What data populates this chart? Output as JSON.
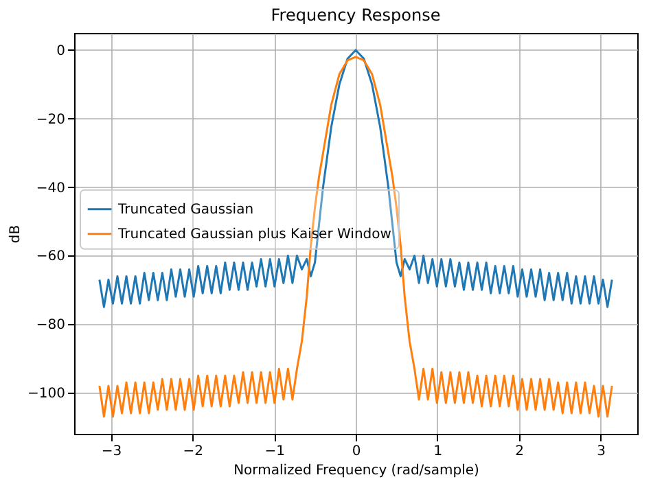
{
  "chart_data": {
    "type": "line",
    "title": "Frequency Response",
    "xlabel": "Normalized Frequency (rad/sample)",
    "ylabel": "dB",
    "x": [
      -3.14,
      -3.085,
      -3.03,
      -2.975,
      -2.92,
      -2.865,
      -2.81,
      -2.755,
      -2.7,
      -2.645,
      -2.59,
      -2.535,
      -2.48,
      -2.425,
      -2.37,
      -2.315,
      -2.26,
      -2.205,
      -2.15,
      -2.095,
      -2.04,
      -1.985,
      -1.93,
      -1.875,
      -1.82,
      -1.765,
      -1.71,
      -1.655,
      -1.6,
      -1.545,
      -1.49,
      -1.435,
      -1.38,
      -1.325,
      -1.27,
      -1.215,
      -1.16,
      -1.105,
      -1.05,
      -0.995,
      -0.94,
      -0.885,
      -0.83,
      -0.775,
      -0.72,
      -0.66,
      -0.6,
      -0.55,
      -0.5,
      -0.45,
      -0.4,
      -0.3,
      -0.2,
      -0.1,
      0,
      0.1,
      0.2,
      0.3,
      0.4,
      0.45,
      0.5,
      0.55,
      0.6,
      0.66,
      0.72,
      0.775,
      0.83,
      0.885,
      0.94,
      0.995,
      1.05,
      1.105,
      1.16,
      1.215,
      1.27,
      1.325,
      1.38,
      1.435,
      1.49,
      1.545,
      1.6,
      1.655,
      1.71,
      1.765,
      1.82,
      1.875,
      1.93,
      1.985,
      2.04,
      2.095,
      2.15,
      2.205,
      2.26,
      2.315,
      2.37,
      2.425,
      2.48,
      2.535,
      2.59,
      2.645,
      2.7,
      2.755,
      2.81,
      2.865,
      2.92,
      2.975,
      3.03,
      3.085,
      3.14
    ],
    "series": [
      {
        "name": "Truncated Gaussian",
        "color": "#1f77b4",
        "values": [
          -67,
          -75,
          -67,
          -74,
          -66,
          -74,
          -66,
          -74,
          -66,
          -74,
          -65,
          -73,
          -65,
          -73,
          -65,
          -73,
          -64,
          -72,
          -64,
          -72,
          -64,
          -72,
          -63,
          -71,
          -63,
          -71,
          -63,
          -71,
          -62,
          -70,
          -62,
          -70,
          -62,
          -70,
          -62,
          -69,
          -61,
          -69,
          -61,
          -69,
          -61,
          -68,
          -60,
          -68,
          -60,
          -64,
          -61,
          -66,
          -62,
          -51,
          -40,
          -22.5,
          -10,
          -2.5,
          0,
          -2.5,
          -10,
          -22.5,
          -40,
          -51,
          -62,
          -66,
          -61,
          -64,
          -60,
          -68,
          -60,
          -68,
          -61,
          -69,
          -61,
          -69,
          -61,
          -69,
          -62,
          -70,
          -62,
          -70,
          -62,
          -70,
          -62,
          -71,
          -63,
          -71,
          -63,
          -71,
          -63,
          -72,
          -64,
          -72,
          -64,
          -72,
          -64,
          -73,
          -65,
          -73,
          -65,
          -73,
          -65,
          -74,
          -66,
          -74,
          -66,
          -74,
          -66,
          -74,
          -67,
          -75,
          -67
        ]
      },
      {
        "name": "Truncated Gaussian plus Kaiser Window",
        "color": "#ff7f0e",
        "values": [
          -98,
          -107,
          -98,
          -107,
          -98,
          -106,
          -97,
          -106,
          -97,
          -106,
          -97,
          -106,
          -97,
          -105,
          -96,
          -105,
          -96,
          -105,
          -96,
          -105,
          -96,
          -105,
          -95,
          -104,
          -95,
          -104,
          -95,
          -104,
          -95,
          -104,
          -95,
          -103,
          -94,
          -103,
          -94,
          -103,
          -94,
          -103,
          -94,
          -103,
          -93,
          -102,
          -93,
          -102,
          -93,
          -85,
          -72,
          -57,
          -46,
          -37,
          -30,
          -16,
          -7,
          -3,
          -2,
          -3,
          -7,
          -16,
          -30,
          -37,
          -46,
          -57,
          -72,
          -85,
          -93,
          -102,
          -93,
          -102,
          -93,
          -103,
          -94,
          -103,
          -94,
          -103,
          -94,
          -103,
          -94,
          -103,
          -95,
          -104,
          -95,
          -104,
          -95,
          -104,
          -95,
          -104,
          -95,
          -105,
          -96,
          -105,
          -96,
          -105,
          -96,
          -105,
          -96,
          -105,
          -97,
          -106,
          -97,
          -106,
          -97,
          -106,
          -97,
          -106,
          -98,
          -107,
          -98,
          -107,
          -98
        ]
      }
    ],
    "xlim": [
      -3.45,
      3.45
    ],
    "ylim": [
      -112,
      5
    ],
    "xticks": [
      {
        "value": -3,
        "label": "−3"
      },
      {
        "value": -2,
        "label": "−2"
      },
      {
        "value": -1,
        "label": "−1"
      },
      0,
      1,
      2,
      3
    ],
    "yticks": [
      {
        "value": -100,
        "label": "−100"
      },
      {
        "value": -80,
        "label": "−80"
      },
      {
        "value": -60,
        "label": "−60"
      },
      {
        "value": -40,
        "label": "−40"
      },
      {
        "value": -20,
        "label": "−20"
      },
      0
    ],
    "grid": true,
    "legend": "left",
    "marker": "none",
    "line_style": "solid"
  }
}
